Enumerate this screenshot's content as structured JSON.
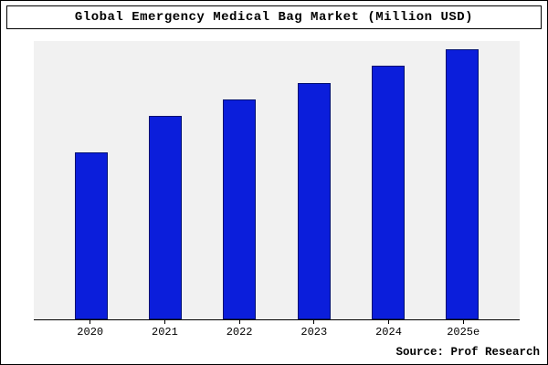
{
  "title": "Global Emergency Medical Bag Market (Million USD)",
  "source": "Source: Prof Research",
  "colors": {
    "bar_fill": "#0b1edb",
    "bar_border": "#001070",
    "plot_bg": "#f1f1f1",
    "frame_border": "#000000"
  },
  "chart_data": {
    "type": "bar",
    "categories": [
      "2020",
      "2021",
      "2022",
      "2023",
      "2024",
      "2025e"
    ],
    "values": [
      60,
      73,
      79,
      85,
      91,
      97
    ],
    "title": "Global Emergency Medical Bag Market (Million USD)",
    "xlabel": "",
    "ylabel": "",
    "ylim": [
      0,
      100
    ],
    "grid": false,
    "legend": false,
    "note": "no y-axis shown; values are relative heights in percent of plot height"
  }
}
